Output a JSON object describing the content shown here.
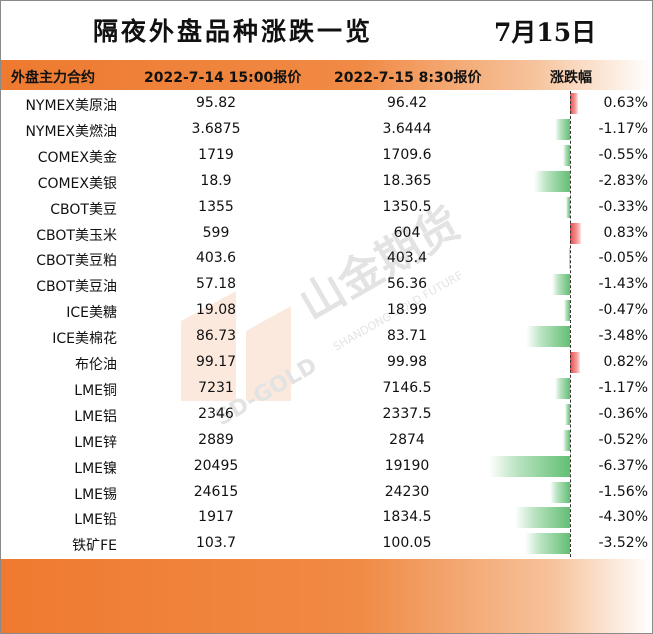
{
  "title": "隔夜外盘品种涨跌一览",
  "date": "7月15日",
  "headers": {
    "contract": "外盘主力合约",
    "price1": "2022-7-14 15:00报价",
    "price2": "2022-7-15 8:30报价",
    "change": "涨跌幅"
  },
  "watermark": {
    "brand": "山金期货",
    "english": "SHANDONG GOLD FUTURES",
    "logo_text": "SD-GOLD"
  },
  "colors": {
    "accent": "#ee7a30",
    "positive_bar": "#e84b4b",
    "negative_bar": "#63bf74"
  },
  "rows": [
    {
      "name": "NYMEX美原油",
      "p1": "95.82",
      "p2": "96.42",
      "chg": "0.63%",
      "value": 0.63
    },
    {
      "name": "NYMEX美燃油",
      "p1": "3.6875",
      "p2": "3.6444",
      "chg": "-1.17%",
      "value": -1.17
    },
    {
      "name": "COMEX美金",
      "p1": "1719",
      "p2": "1709.6",
      "chg": "-0.55%",
      "value": -0.55
    },
    {
      "name": "COMEX美银",
      "p1": "18.9",
      "p2": "18.365",
      "chg": "-2.83%",
      "value": -2.83
    },
    {
      "name": "CBOT美豆",
      "p1": "1355",
      "p2": "1350.5",
      "chg": "-0.33%",
      "value": -0.33
    },
    {
      "name": "CBOT美玉米",
      "p1": "599",
      "p2": "604",
      "chg": "0.83%",
      "value": 0.83
    },
    {
      "name": "CBOT美豆粕",
      "p1": "403.6",
      "p2": "403.4",
      "chg": "-0.05%",
      "value": -0.05
    },
    {
      "name": "CBOT美豆油",
      "p1": "57.18",
      "p2": "56.36",
      "chg": "-1.43%",
      "value": -1.43
    },
    {
      "name": "ICE美糖",
      "p1": "19.08",
      "p2": "18.99",
      "chg": "-0.47%",
      "value": -0.47
    },
    {
      "name": "ICE美棉花",
      "p1": "86.73",
      "p2": "83.71",
      "chg": "-3.48%",
      "value": -3.48
    },
    {
      "name": "布伦油",
      "p1": "99.17",
      "p2": "99.98",
      "chg": "0.82%",
      "value": 0.82
    },
    {
      "name": "LME铜",
      "p1": "7231",
      "p2": "7146.5",
      "chg": "-1.17%",
      "value": -1.17
    },
    {
      "name": "LME铝",
      "p1": "2346",
      "p2": "2337.5",
      "chg": "-0.36%",
      "value": -0.36
    },
    {
      "name": "LME锌",
      "p1": "2889",
      "p2": "2874",
      "chg": "-0.52%",
      "value": -0.52
    },
    {
      "name": "LME镍",
      "p1": "20495",
      "p2": "19190",
      "chg": "-6.37%",
      "value": -6.37
    },
    {
      "name": "LME锡",
      "p1": "24615",
      "p2": "24230",
      "chg": "-1.56%",
      "value": -1.56
    },
    {
      "name": "LME铅",
      "p1": "1917",
      "p2": "1834.5",
      "chg": "-4.30%",
      "value": -4.3
    },
    {
      "name": "铁矿FE",
      "p1": "103.7",
      "p2": "100.05",
      "chg": "-3.52%",
      "value": -3.52
    }
  ]
}
